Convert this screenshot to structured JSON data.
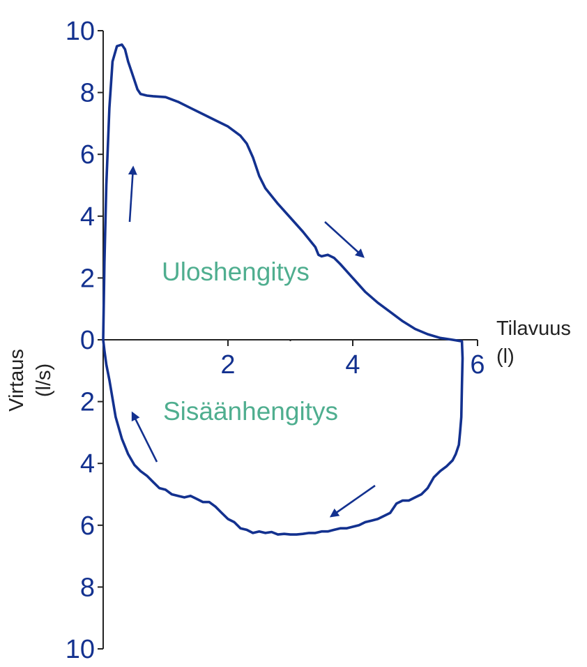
{
  "colors": {
    "curve": "#13318f",
    "axis": "#222222",
    "region_label": "#4fae8f"
  },
  "chart_data": {
    "type": "line",
    "title": "",
    "xlabel": "Tilavuus",
    "xlabel_unit": "(l)",
    "ylabel": "Virtaus",
    "ylabel_unit": "(l/s)",
    "xlim": [
      0,
      6
    ],
    "ylim": [
      -10,
      10
    ],
    "x_ticks": [
      2,
      4,
      6
    ],
    "y_ticks": [
      10,
      8,
      6,
      4,
      2,
      0,
      -2,
      -4,
      -6,
      -8,
      -10
    ],
    "y_tick_labels": [
      "10",
      "8",
      "6",
      "4",
      "2",
      "0",
      "2",
      "4",
      "6",
      "8",
      "10"
    ],
    "x_tick_labels": [
      "2",
      "4",
      "6"
    ],
    "annotations": {
      "expiration": "Uloshengitys",
      "inspiration": "Sisäänhengitys"
    },
    "grid": false,
    "series": [
      {
        "values_x": [
          0.0,
          0.02,
          0.05,
          0.1,
          0.15,
          0.22,
          0.3,
          0.35,
          0.4,
          0.45,
          0.5,
          0.55,
          0.6,
          0.7,
          0.8,
          1.0,
          1.2,
          1.4,
          1.6,
          1.8,
          2.0,
          2.2,
          2.3,
          2.4,
          2.5,
          2.6,
          2.8,
          3.0,
          3.2,
          3.4,
          3.45,
          3.5,
          3.6,
          3.7,
          3.8,
          4.0,
          4.2,
          4.4,
          4.6,
          4.8,
          5.0,
          5.2,
          5.4,
          5.6,
          5.75,
          5.76,
          5.75,
          5.74,
          5.72,
          5.7,
          5.65,
          5.6,
          5.5,
          5.4,
          5.3,
          5.2,
          5.1,
          5.0,
          4.9,
          4.8,
          4.7,
          4.6,
          4.5,
          4.4,
          4.3,
          4.2,
          4.1,
          4.0,
          3.9,
          3.8,
          3.7,
          3.6,
          3.5,
          3.4,
          3.3,
          3.2,
          3.1,
          3.0,
          2.9,
          2.8,
          2.7,
          2.6,
          2.5,
          2.4,
          2.3,
          2.2,
          2.1,
          2.0,
          1.9,
          1.8,
          1.7,
          1.6,
          1.5,
          1.4,
          1.3,
          1.2,
          1.1,
          1.0,
          0.9,
          0.8,
          0.7,
          0.6,
          0.5,
          0.4,
          0.3,
          0.2,
          0.1,
          0.05,
          0.02,
          0.0
        ],
        "values_y": [
          0.0,
          2.5,
          5.0,
          7.5,
          9.0,
          9.5,
          9.55,
          9.4,
          9.0,
          8.7,
          8.4,
          8.1,
          7.95,
          7.9,
          7.88,
          7.85,
          7.7,
          7.5,
          7.3,
          7.1,
          6.9,
          6.6,
          6.35,
          5.9,
          5.3,
          4.9,
          4.4,
          3.95,
          3.5,
          3.0,
          2.75,
          2.7,
          2.75,
          2.65,
          2.45,
          2.0,
          1.55,
          1.2,
          0.9,
          0.6,
          0.35,
          0.18,
          0.06,
          0.0,
          -0.05,
          -0.6,
          -1.5,
          -2.5,
          -3.0,
          -3.4,
          -3.7,
          -3.9,
          -4.1,
          -4.25,
          -4.45,
          -4.8,
          -5.0,
          -5.1,
          -5.2,
          -5.2,
          -5.3,
          -5.6,
          -5.7,
          -5.8,
          -5.85,
          -5.9,
          -6.0,
          -6.05,
          -6.1,
          -6.1,
          -6.15,
          -6.2,
          -6.2,
          -6.25,
          -6.25,
          -6.28,
          -6.3,
          -6.3,
          -6.28,
          -6.3,
          -6.22,
          -6.25,
          -6.2,
          -6.25,
          -6.15,
          -6.1,
          -5.9,
          -5.8,
          -5.6,
          -5.4,
          -5.25,
          -5.25,
          -5.15,
          -5.05,
          -5.1,
          -5.05,
          -5.0,
          -4.85,
          -4.8,
          -4.6,
          -4.4,
          -4.25,
          -4.05,
          -3.7,
          -3.2,
          -2.5,
          -1.3,
          -0.8,
          -0.35,
          0.0
        ]
      }
    ]
  }
}
